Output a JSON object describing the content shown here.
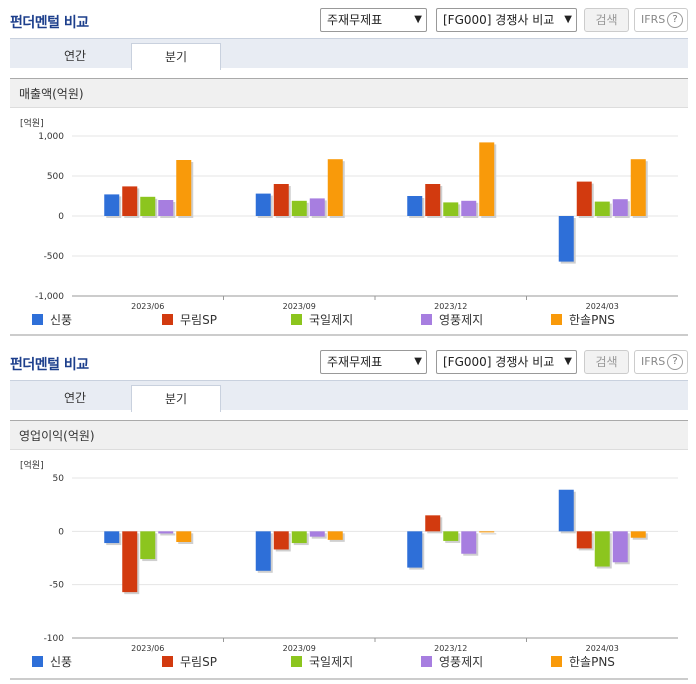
{
  "sections": [
    {
      "title": "펀더멘털 비교",
      "select1": "주재무제표",
      "select2": "[FG000] 경쟁사 비교",
      "search_label": "검색",
      "ifrs_label": "IFRS",
      "help_glyph": "?",
      "tabs": [
        "연간",
        "분기"
      ],
      "active_tab": "분기",
      "subtitle": "매출액(억원)"
    },
    {
      "title": "펀더멘털 비교",
      "select1": "주재무제표",
      "select2": "[FG000] 경쟁사 비교",
      "search_label": "검색",
      "ifrs_label": "IFRS",
      "help_glyph": "?",
      "tabs": [
        "연간",
        "분기"
      ],
      "active_tab": "분기",
      "subtitle": "영업이익(억원)"
    }
  ],
  "chart_data": [
    {
      "type": "bar",
      "title": "매출액(억원)",
      "unit_label": "[억원]",
      "categories": [
        "2023/06",
        "2023/09",
        "2023/12",
        "2024/03"
      ],
      "ylim": [
        -1000,
        1000
      ],
      "yticks": [
        1000,
        500,
        0,
        -500,
        -1000
      ],
      "ytick_labels": [
        "1,000",
        "500",
        "0",
        "-500",
        "-1,000"
      ],
      "grid": true,
      "legend_position": "bottom",
      "series": [
        {
          "name": "신풍",
          "color": "#2e6fd8",
          "values": [
            270,
            280,
            250,
            -570
          ]
        },
        {
          "name": "무림SP",
          "color": "#d23a0f",
          "values": [
            370,
            400,
            400,
            430
          ]
        },
        {
          "name": "국일제지",
          "color": "#8cc51e",
          "values": [
            240,
            190,
            170,
            180
          ]
        },
        {
          "name": "영풍제지",
          "color": "#a77ee0",
          "values": [
            200,
            220,
            190,
            210
          ]
        },
        {
          "name": "한솔PNS",
          "color": "#f99a0a",
          "values": [
            700,
            710,
            920,
            710
          ]
        }
      ]
    },
    {
      "type": "bar",
      "title": "영업이익(억원)",
      "unit_label": "[억원]",
      "categories": [
        "2023/06",
        "2023/09",
        "2023/12",
        "2024/03"
      ],
      "ylim": [
        -100,
        50
      ],
      "yticks": [
        50,
        0,
        -50,
        -100
      ],
      "ytick_labels": [
        "50",
        "0",
        "-50",
        "-100"
      ],
      "grid": true,
      "legend_position": "bottom",
      "series": [
        {
          "name": "신풍",
          "color": "#2e6fd8",
          "values": [
            -11,
            -37,
            -34,
            39
          ]
        },
        {
          "name": "무림SP",
          "color": "#d23a0f",
          "values": [
            -57,
            -17,
            15,
            -16
          ]
        },
        {
          "name": "국일제지",
          "color": "#8cc51e",
          "values": [
            -26,
            -11,
            -9,
            -33
          ]
        },
        {
          "name": "영풍제지",
          "color": "#a77ee0",
          "values": [
            -2,
            -5,
            -21,
            -29
          ]
        },
        {
          "name": "한솔PNS",
          "color": "#f99a0a",
          "values": [
            -10,
            -8,
            -1,
            -6
          ]
        }
      ]
    }
  ]
}
